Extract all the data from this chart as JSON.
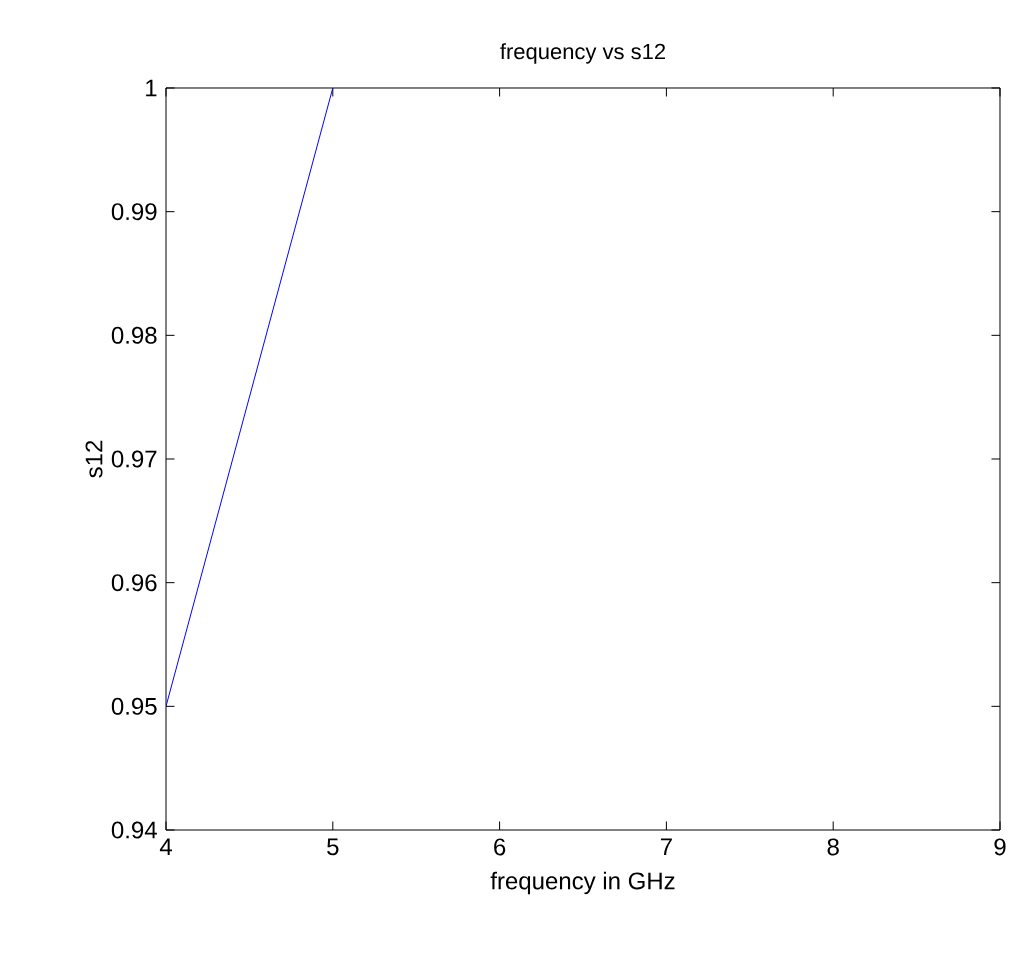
{
  "chart_data": {
    "type": "line",
    "title": "frequency vs s12",
    "xlabel": "frequency in GHz",
    "ylabel": "s12",
    "x": [
      4,
      5
    ],
    "series": [
      {
        "color": "#0000ff",
        "values": [
          0.95,
          1
        ]
      }
    ],
    "xlim": [
      4,
      9
    ],
    "ylim": [
      0.94,
      1
    ],
    "xticks": [
      4,
      5,
      6,
      7,
      8,
      9
    ],
    "yticks": [
      0.94,
      0.95,
      0.96,
      0.97,
      0.98,
      0.99,
      1
    ],
    "grid": false,
    "line_style": "solid"
  }
}
